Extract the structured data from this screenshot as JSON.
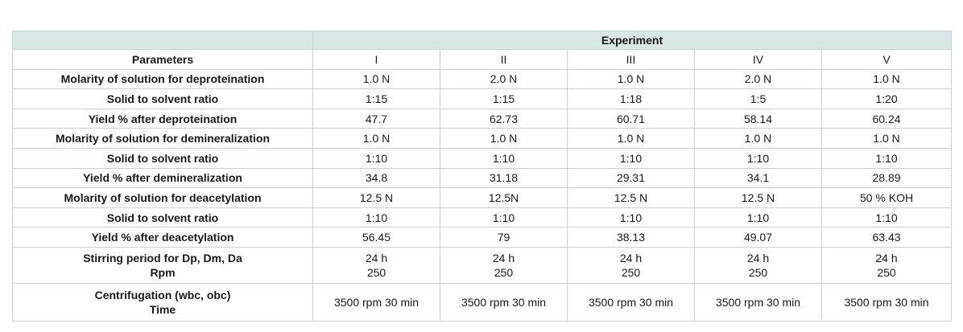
{
  "table": {
    "group_header": "Experiment",
    "columns": [
      "Parameters",
      "I",
      "II",
      "III",
      "IV",
      "V"
    ],
    "rows": [
      {
        "param": [
          "Molarity of solution for deproteination"
        ],
        "values": [
          [
            "1.0 N"
          ],
          [
            "2.0 N"
          ],
          [
            "1.0 N"
          ],
          [
            "2.0 N"
          ],
          [
            "1.0 N"
          ]
        ]
      },
      {
        "param": [
          "Solid to solvent ratio"
        ],
        "values": [
          [
            "1:15"
          ],
          [
            "1:15"
          ],
          [
            "1:18"
          ],
          [
            "1:5"
          ],
          [
            "1:20"
          ]
        ]
      },
      {
        "param": [
          "Yield % after deproteination"
        ],
        "values": [
          [
            "47.7"
          ],
          [
            "62.73"
          ],
          [
            "60.71"
          ],
          [
            "58.14"
          ],
          [
            "60.24"
          ]
        ]
      },
      {
        "param": [
          "Molarity of solution for demineralization"
        ],
        "values": [
          [
            "1.0 N"
          ],
          [
            "1.0 N"
          ],
          [
            "1.0 N"
          ],
          [
            "1.0 N"
          ],
          [
            "1.0 N"
          ]
        ]
      },
      {
        "param": [
          "Solid to solvent ratio"
        ],
        "values": [
          [
            "1:10"
          ],
          [
            "1:10"
          ],
          [
            "1:10"
          ],
          [
            "1:10"
          ],
          [
            "1:10"
          ]
        ]
      },
      {
        "param": [
          "Yield % after demineralization"
        ],
        "values": [
          [
            "34.8"
          ],
          [
            "31.18"
          ],
          [
            "29.31"
          ],
          [
            "34.1"
          ],
          [
            "28.89"
          ]
        ]
      },
      {
        "param": [
          "Molarity of solution for deacetylation"
        ],
        "values": [
          [
            "12.5 N"
          ],
          [
            "12.5N"
          ],
          [
            "12.5 N"
          ],
          [
            "12.5 N"
          ],
          [
            "50 % KOH"
          ]
        ]
      },
      {
        "param": [
          "Solid to solvent ratio"
        ],
        "values": [
          [
            "1:10"
          ],
          [
            "1:10"
          ],
          [
            "1:10"
          ],
          [
            "1:10"
          ],
          [
            "1:10"
          ]
        ]
      },
      {
        "param": [
          "Yield % after deacetylation"
        ],
        "values": [
          [
            "56.45"
          ],
          [
            "79"
          ],
          [
            "38.13"
          ],
          [
            "49.07"
          ],
          [
            "63.43"
          ]
        ]
      },
      {
        "param": [
          "Stirring period for Dp, Dm, Da",
          "Rpm"
        ],
        "values": [
          [
            "24 h",
            "250"
          ],
          [
            "24 h",
            "250"
          ],
          [
            "24 h",
            "250"
          ],
          [
            "24 h",
            "250"
          ],
          [
            "24 h",
            "250"
          ]
        ]
      },
      {
        "param": [
          "Centrifugation (wbc, obc)",
          "Time"
        ],
        "values": [
          [
            "3500 rpm 30 min"
          ],
          [
            "3500 rpm 30 min"
          ],
          [
            "3500 rpm 30 min"
          ],
          [
            "3500 rpm 30 min"
          ],
          [
            "3500 rpm 30 min"
          ]
        ]
      }
    ]
  }
}
